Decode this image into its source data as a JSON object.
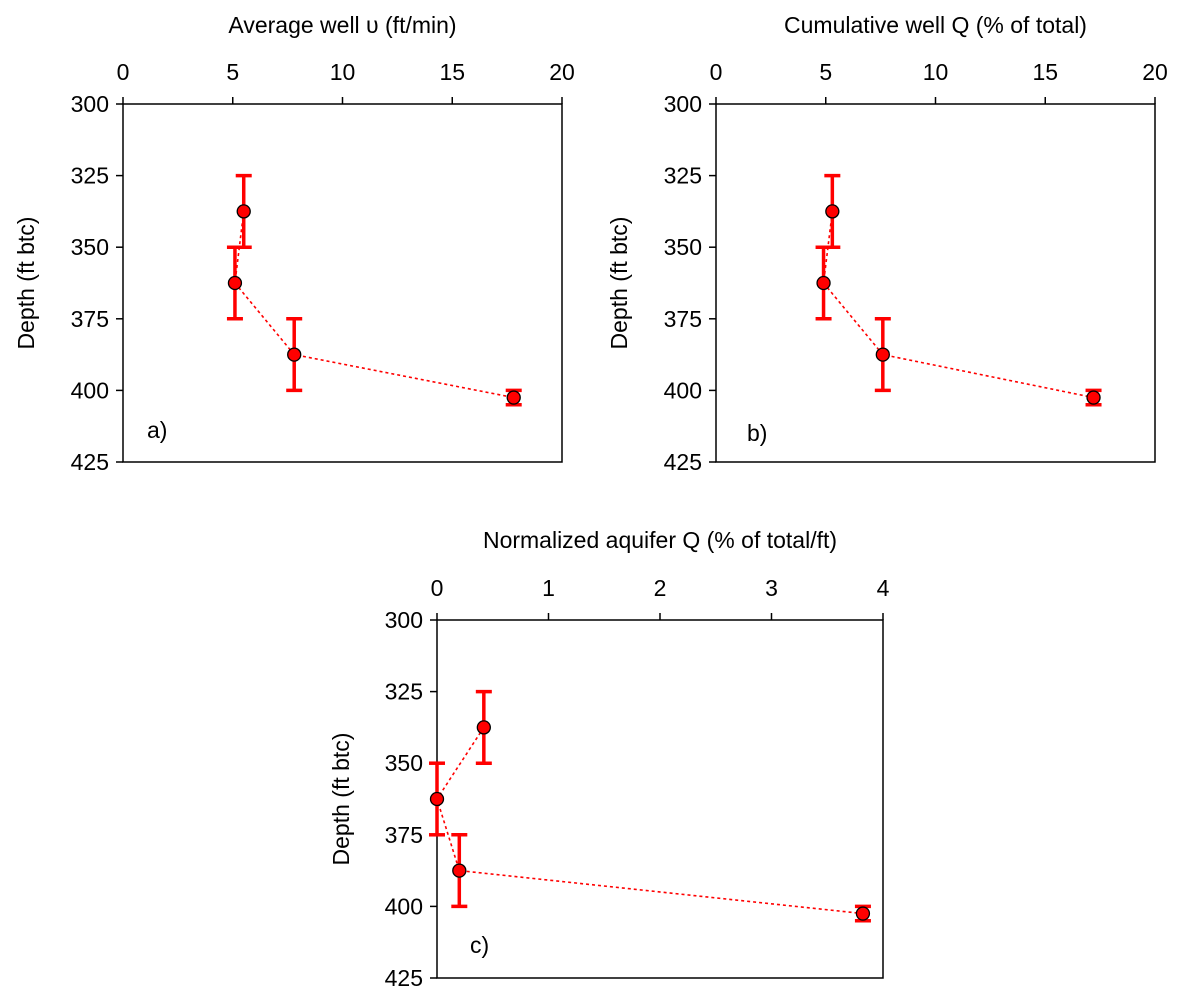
{
  "chart_data": [
    {
      "type": "scatter",
      "panel_label": "a)",
      "title": "",
      "xlabel": "Average well υ (ft/min)",
      "ylabel": "Depth (ft btc)",
      "xlim": [
        0,
        20
      ],
      "ylim": [
        300,
        425
      ],
      "y_inverted": true,
      "x_axis_position": "top",
      "x_ticks": [
        "0",
        "5",
        "10",
        "15",
        "20"
      ],
      "y_ticks": [
        "300",
        "325",
        "350",
        "375",
        "400",
        "425"
      ],
      "grid": false,
      "legend": "none",
      "series": [
        {
          "marker": "circle",
          "line_style": "dotted",
          "color": "#ff0000",
          "x": [
            5.5,
            5.1,
            7.8,
            17.8
          ],
          "y": [
            337.5,
            362.5,
            387.5,
            402.5
          ],
          "y_err_low": [
            12.5,
            12.5,
            12.5,
            2.5
          ],
          "y_err_high": [
            12.5,
            12.5,
            12.5,
            2.5
          ]
        }
      ]
    },
    {
      "type": "scatter",
      "panel_label": "b)",
      "title": "",
      "xlabel": "Cumulative well Q (% of total)",
      "ylabel": "Depth (ft btc)",
      "xlim": [
        0,
        20
      ],
      "ylim": [
        300,
        425
      ],
      "y_inverted": true,
      "x_axis_position": "top",
      "x_ticks": [
        "0",
        "5",
        "10",
        "15",
        "20"
      ],
      "y_ticks": [
        "300",
        "325",
        "350",
        "375",
        "400",
        "425"
      ],
      "grid": false,
      "legend": "none",
      "series": [
        {
          "marker": "circle",
          "line_style": "dotted",
          "color": "#ff0000",
          "x": [
            5.3,
            4.9,
            7.6,
            17.2
          ],
          "y": [
            337.5,
            362.5,
            387.5,
            402.5
          ],
          "y_err_low": [
            12.5,
            12.5,
            12.5,
            2.5
          ],
          "y_err_high": [
            12.5,
            12.5,
            12.5,
            2.5
          ]
        }
      ]
    },
    {
      "type": "scatter",
      "panel_label": "c)",
      "title": "",
      "xlabel": "Normalized aquifer Q (% of total/ft)",
      "ylabel": "Depth (ft btc)",
      "xlim": [
        0,
        4
      ],
      "ylim": [
        300,
        425
      ],
      "y_inverted": true,
      "x_axis_position": "top",
      "x_ticks": [
        "0",
        "1",
        "2",
        "3",
        "4"
      ],
      "y_ticks": [
        "300",
        "325",
        "350",
        "375",
        "400",
        "425"
      ],
      "grid": false,
      "legend": "none",
      "series": [
        {
          "marker": "circle",
          "line_style": "dotted",
          "color": "#ff0000",
          "x": [
            0.42,
            0.0,
            0.2,
            3.82
          ],
          "y": [
            337.5,
            362.5,
            387.5,
            402.5
          ],
          "y_err_low": [
            12.5,
            12.5,
            12.5,
            2.5
          ],
          "y_err_high": [
            12.5,
            12.5,
            12.5,
            2.5
          ]
        }
      ]
    }
  ]
}
